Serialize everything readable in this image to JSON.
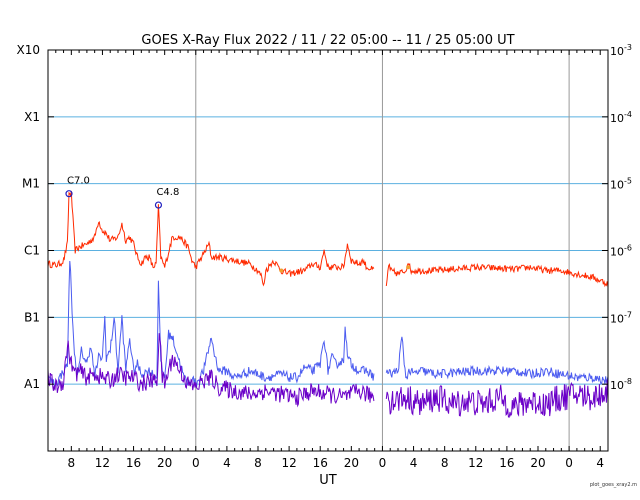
{
  "chart_data": {
    "type": "line",
    "title": "GOES X-Ray Flux   2022 / 11 / 22   05:00 -- 11 / 25   05:00   UT",
    "xlabel": "UT",
    "x_unit": "hours from 2022-11-22 05:00 UT",
    "x_ticks": [
      {
        "x": 3,
        "label": "8"
      },
      {
        "x": 7,
        "label": "12"
      },
      {
        "x": 11,
        "label": "16"
      },
      {
        "x": 15,
        "label": "20"
      },
      {
        "x": 19,
        "label": "0"
      },
      {
        "x": 23,
        "label": "4"
      },
      {
        "x": 27,
        "label": "8"
      },
      {
        "x": 31,
        "label": "12"
      },
      {
        "x": 35,
        "label": "16"
      },
      {
        "x": 39,
        "label": "20"
      },
      {
        "x": 43,
        "label": "0"
      },
      {
        "x": 47,
        "label": "4"
      },
      {
        "x": 51,
        "label": "8"
      },
      {
        "x": 55,
        "label": "12"
      },
      {
        "x": 59,
        "label": "16"
      },
      {
        "x": 63,
        "label": "20"
      },
      {
        "x": 67,
        "label": "0"
      },
      {
        "x": 71,
        "label": "4"
      }
    ],
    "day_boundaries": [
      19,
      43,
      67
    ],
    "xlim": [
      0,
      72
    ],
    "ylim": [
      -9,
      -3
    ],
    "y_scale": "log10 W/m^2",
    "y_ticks_left": [
      {
        "y": -8,
        "label": "A1"
      },
      {
        "y": -7,
        "label": "B1"
      },
      {
        "y": -6,
        "label": "C1"
      },
      {
        "y": -5,
        "label": "M1"
      },
      {
        "y": -4,
        "label": "X1"
      },
      {
        "y": -3,
        "label": "X10"
      }
    ],
    "y_ticks_right": [
      {
        "y": -8,
        "base": "10",
        "exp": "-8"
      },
      {
        "y": -7,
        "base": "10",
        "exp": "-7"
      },
      {
        "y": -6,
        "base": "10",
        "exp": "-6"
      },
      {
        "y": -5,
        "base": "10",
        "exp": "-5"
      },
      {
        "y": -4,
        "base": "10",
        "exp": "-4"
      },
      {
        "y": -3,
        "base": "10",
        "exp": "-3"
      }
    ],
    "gap": [
      42,
      43.5
    ],
    "series": [
      {
        "color": "#ff2a00",
        "x": [
          0,
          1,
          1.5,
          2,
          2.5,
          2.7,
          3,
          3.3,
          3.5,
          4,
          5,
          6,
          6.5,
          7,
          7.5,
          8,
          9,
          9.5,
          10,
          10.5,
          11,
          11.5,
          12,
          12.5,
          13,
          13.5,
          13.9,
          14.2,
          14.5,
          15,
          16,
          17,
          18,
          18.5,
          19,
          20,
          20.7,
          21,
          22,
          24,
          26,
          27,
          27.5,
          27.7,
          28,
          29,
          30,
          31,
          33,
          34,
          35,
          35.5,
          36,
          38,
          38.5,
          39,
          40,
          40.5,
          41,
          42,
          43.5,
          43.8,
          44,
          45,
          46,
          46.3,
          46.6,
          47,
          50,
          55,
          60,
          62,
          64,
          66,
          68,
          70,
          72
        ],
        "y": [
          -6.2,
          -6.22,
          -6.2,
          -6.15,
          -5.9,
          -5.15,
          -5.15,
          -5.7,
          -6.0,
          -5.95,
          -5.9,
          -5.8,
          -5.55,
          -5.7,
          -5.75,
          -5.85,
          -5.8,
          -5.6,
          -5.85,
          -5.8,
          -5.9,
          -6.1,
          -6.2,
          -6.1,
          -6.1,
          -6.25,
          -6.2,
          -5.32,
          -6.1,
          -6.25,
          -5.8,
          -5.8,
          -5.95,
          -6.15,
          -6.25,
          -6.05,
          -5.9,
          -6.1,
          -6.1,
          -6.15,
          -6.2,
          -6.3,
          -6.4,
          -6.55,
          -6.3,
          -6.15,
          -6.3,
          -6.35,
          -6.3,
          -6.2,
          -6.25,
          -6.0,
          -6.25,
          -6.25,
          -5.9,
          -6.15,
          -6.2,
          -6.15,
          -6.25,
          -6.3,
          -6.55,
          -6.2,
          -6.3,
          -6.35,
          -6.3,
          -6.15,
          -6.3,
          -6.3,
          -6.3,
          -6.25,
          -6.28,
          -6.25,
          -6.3,
          -6.3,
          -6.35,
          -6.4,
          -6.5
        ]
      },
      {
        "color": "#4c5cf0",
        "x": [
          0,
          1,
          1.5,
          2,
          2.5,
          2.8,
          3.3,
          3.8,
          4.3,
          5,
          5.5,
          6,
          6.5,
          7,
          7.3,
          7.5,
          8,
          8.5,
          9,
          9.5,
          10,
          10.5,
          11,
          11.5,
          12,
          13,
          14,
          14.2,
          14.5,
          15,
          15.5,
          16,
          17,
          17.5,
          18,
          18.5,
          19,
          20,
          21,
          21.5,
          22,
          23,
          24,
          26,
          28,
          30,
          31,
          32,
          33,
          34,
          35,
          35.5,
          36,
          36.5,
          37,
          38,
          38.2,
          38.5,
          39,
          40,
          41,
          42,
          43.5,
          44,
          45,
          45.5,
          46,
          46.5,
          47,
          48,
          50,
          55,
          60,
          62,
          64,
          66,
          68,
          70,
          72
        ],
        "y": [
          -7.9,
          -8.0,
          -7.9,
          -7.8,
          -7.7,
          -6.1,
          -7.4,
          -7.9,
          -7.5,
          -7.7,
          -7.4,
          -7.9,
          -7.6,
          -7.6,
          -7.0,
          -7.6,
          -7.5,
          -7.0,
          -7.8,
          -7.0,
          -7.8,
          -7.3,
          -7.8,
          -7.7,
          -7.85,
          -7.8,
          -7.9,
          -6.4,
          -7.7,
          -7.9,
          -7.25,
          -7.3,
          -7.7,
          -7.9,
          -8.0,
          -7.9,
          -8.0,
          -7.8,
          -7.3,
          -7.6,
          -7.8,
          -7.8,
          -7.9,
          -7.8,
          -7.9,
          -7.85,
          -7.9,
          -7.9,
          -7.75,
          -7.8,
          -7.7,
          -7.3,
          -7.8,
          -7.6,
          -7.7,
          -7.65,
          -7.1,
          -7.6,
          -7.7,
          -7.8,
          -7.8,
          -7.9,
          -7.8,
          -7.85,
          -7.8,
          -7.3,
          -7.9,
          -7.8,
          -7.85,
          -7.8,
          -7.85,
          -7.8,
          -7.8,
          -7.85,
          -7.8,
          -7.85,
          -7.9,
          -7.9,
          -7.95
        ]
      },
      {
        "color": "#6a00c8",
        "x": [
          0,
          1,
          2,
          2.5,
          3,
          3.5,
          4,
          5,
          6,
          7,
          8,
          9,
          10,
          11,
          12,
          13,
          14,
          14.3,
          14.7,
          15,
          16,
          17,
          18,
          19,
          20,
          21,
          22,
          24,
          26,
          28,
          30,
          32,
          34,
          36,
          38,
          40,
          42,
          43.5,
          44,
          46,
          48,
          50,
          52,
          54,
          56,
          58,
          60,
          62,
          64,
          66,
          68,
          70,
          72
        ],
        "y": [
          -7.9,
          -8.05,
          -7.95,
          -7.4,
          -7.7,
          -7.85,
          -7.8,
          -7.9,
          -7.85,
          -7.9,
          -7.95,
          -7.85,
          -7.9,
          -7.9,
          -8.0,
          -7.95,
          -7.95,
          -7.2,
          -7.9,
          -8.0,
          -7.6,
          -7.8,
          -8.0,
          -8.05,
          -7.95,
          -7.9,
          -8.05,
          -8.1,
          -8.15,
          -8.1,
          -8.15,
          -8.2,
          -8.1,
          -8.15,
          -8.2,
          -8.1,
          -8.2,
          -8.1,
          -8.25,
          -8.2,
          -8.3,
          -8.2,
          -8.3,
          -8.25,
          -8.3,
          -8.2,
          -8.35,
          -8.25,
          -8.3,
          -8.2,
          -8.15,
          -8.2,
          -8.1
        ]
      }
    ],
    "annotations": [
      {
        "text": "C7.0",
        "x": 2.7,
        "y": -5.15
      },
      {
        "text": "C4.8",
        "x": 14.2,
        "y": -5.32
      }
    ],
    "markers": [
      {
        "type": "circle",
        "color": "#2020c0",
        "x": 2.7,
        "y": -5.15
      },
      {
        "type": "circle",
        "color": "#2020c0",
        "x": 14.2,
        "y": -5.32
      },
      {
        "type": "dot",
        "color": "#f0a030",
        "x": 30,
        "y": -6.3
      },
      {
        "type": "dot",
        "color": "#f0a030",
        "x": 46.3,
        "y": -6.25
      }
    ],
    "grid": true,
    "grid_color": "#5bb0e0",
    "day_line_color": "#999999",
    "credit": "plot_goes_xray2.m"
  }
}
